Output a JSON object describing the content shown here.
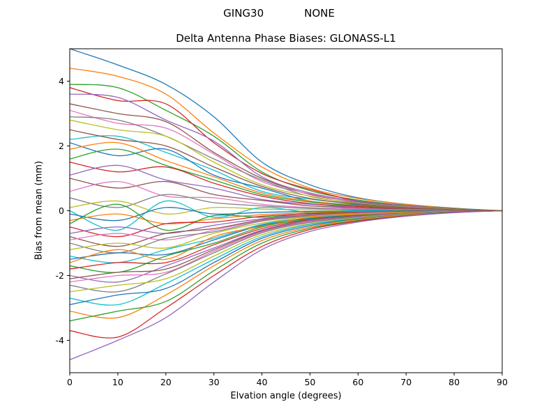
{
  "header": {
    "left": "GING30",
    "right": "NONE"
  },
  "chart_data": {
    "type": "line",
    "title": "Delta Antenna Phase Biases: GLONASS-L1",
    "xlabel": "Elvation angle (degrees)",
    "ylabel": "Bias from mean (mm)",
    "xlim": [
      0,
      90
    ],
    "ylim": [
      -5,
      5
    ],
    "xticks": [
      0,
      10,
      20,
      30,
      40,
      50,
      60,
      70,
      80,
      90
    ],
    "yticks": [
      -4,
      -2,
      0,
      2,
      4
    ],
    "grid": false,
    "legend": "none",
    "x": [
      0,
      10,
      20,
      30,
      40,
      50,
      60,
      70,
      80,
      90
    ],
    "palette": [
      "#1f77b4",
      "#ff7f0e",
      "#2ca02c",
      "#d62728",
      "#9467bd",
      "#8c564b",
      "#e377c2",
      "#7f7f7f",
      "#bcbd22",
      "#17becf"
    ],
    "series": [
      [
        5.0,
        4.5,
        3.9,
        2.9,
        1.5,
        0.8,
        0.4,
        0.2,
        0.08,
        0.0
      ],
      [
        4.4,
        4.15,
        3.6,
        2.4,
        1.35,
        0.7,
        0.38,
        0.2,
        0.07,
        0.0
      ],
      [
        3.9,
        3.8,
        3.1,
        2.3,
        1.2,
        0.62,
        0.33,
        0.17,
        0.06,
        0.0
      ],
      [
        3.8,
        3.4,
        3.3,
        2.1,
        1.15,
        0.66,
        0.3,
        0.15,
        0.05,
        0.0
      ],
      [
        3.6,
        3.5,
        2.8,
        2.15,
        1.05,
        0.55,
        0.3,
        0.16,
        0.05,
        0.0
      ],
      [
        3.3,
        3.0,
        2.75,
        1.8,
        1.0,
        0.5,
        0.28,
        0.14,
        0.05,
        0.0
      ],
      [
        3.1,
        2.7,
        2.55,
        1.75,
        0.9,
        0.52,
        0.26,
        0.13,
        0.04,
        0.0
      ],
      [
        2.9,
        2.8,
        2.3,
        1.6,
        0.95,
        0.44,
        0.25,
        0.12,
        0.04,
        0.0
      ],
      [
        2.8,
        2.5,
        2.3,
        1.5,
        0.8,
        0.45,
        0.22,
        0.11,
        0.04,
        0.0
      ],
      [
        2.2,
        2.3,
        1.8,
        1.25,
        0.6,
        0.36,
        0.2,
        0.1,
        0.03,
        0.0
      ],
      [
        2.1,
        1.7,
        1.9,
        1.1,
        0.7,
        0.3,
        0.18,
        0.09,
        0.03,
        0.0
      ],
      [
        1.9,
        2.1,
        1.55,
        1.05,
        0.55,
        0.3,
        0.16,
        0.08,
        0.03,
        0.0
      ],
      [
        1.6,
        1.9,
        1.4,
        0.95,
        0.5,
        0.27,
        0.15,
        0.07,
        0.02,
        0.0
      ],
      [
        1.5,
        1.2,
        1.35,
        0.85,
        0.45,
        0.22,
        0.13,
        0.06,
        0.02,
        0.0
      ],
      [
        1.1,
        1.4,
        0.95,
        0.7,
        0.35,
        0.2,
        0.1,
        0.05,
        0.02,
        0.0
      ],
      [
        1.0,
        0.7,
        0.9,
        0.5,
        0.32,
        0.15,
        0.09,
        0.04,
        0.01,
        0.0
      ],
      [
        0.6,
        0.9,
        0.45,
        0.4,
        0.2,
        0.1,
        0.06,
        0.03,
        0.01,
        0.0
      ],
      [
        0.4,
        0.1,
        0.5,
        0.25,
        0.15,
        0.07,
        0.04,
        0.02,
        0.01,
        0.0
      ],
      [
        0.1,
        0.3,
        -0.1,
        0.1,
        0.05,
        0.03,
        0.01,
        0.01,
        0.0,
        0.0
      ],
      [
        0.0,
        -0.6,
        0.3,
        -0.2,
        0.1,
        -0.05,
        0.02,
        0.0,
        0.0,
        0.0
      ],
      [
        -0.1,
        -0.3,
        0.1,
        -0.1,
        -0.05,
        -0.02,
        -0.01,
        0.0,
        0.0,
        0.0
      ],
      [
        -0.3,
        -0.1,
        -0.4,
        -0.25,
        -0.12,
        -0.06,
        -0.03,
        -0.02,
        -0.01,
        0.0
      ],
      [
        -0.4,
        0.2,
        -0.6,
        -0.15,
        -0.2,
        -0.08,
        -0.04,
        -0.02,
        -0.01,
        0.0
      ],
      [
        -0.5,
        -0.8,
        -0.4,
        -0.35,
        -0.17,
        -0.09,
        -0.05,
        -0.02,
        -0.01,
        0.0
      ],
      [
        -0.7,
        -0.5,
        -0.7,
        -0.45,
        -0.25,
        -0.12,
        -0.06,
        -0.03,
        -0.01,
        0.0
      ],
      [
        -0.8,
        -1.1,
        -0.7,
        -0.55,
        -0.28,
        -0.14,
        -0.07,
        -0.04,
        -0.01,
        0.0
      ],
      [
        -0.9,
        -0.7,
        -0.9,
        -0.6,
        -0.3,
        -0.15,
        -0.08,
        -0.04,
        -0.01,
        0.0
      ],
      [
        -1.0,
        -1.3,
        -0.85,
        -0.65,
        -0.32,
        -0.16,
        -0.09,
        -0.04,
        -0.02,
        0.0
      ],
      [
        -1.2,
        -1.0,
        -1.15,
        -0.7,
        -0.38,
        -0.18,
        -0.1,
        -0.05,
        -0.02,
        0.0
      ],
      [
        -1.4,
        -1.6,
        -1.2,
        -0.85,
        -0.42,
        -0.22,
        -0.12,
        -0.06,
        -0.02,
        0.0
      ],
      [
        -1.5,
        -1.3,
        -1.35,
        -0.9,
        -0.45,
        -0.24,
        -0.13,
        -0.06,
        -0.02,
        0.0
      ],
      [
        -1.6,
        -1.2,
        -1.5,
        -0.8,
        -0.48,
        -0.2,
        -0.11,
        -0.05,
        -0.02,
        0.0
      ],
      [
        -1.7,
        -1.9,
        -1.4,
        -1.0,
        -0.5,
        -0.26,
        -0.15,
        -0.07,
        -0.03,
        0.0
      ],
      [
        -1.8,
        -1.6,
        -1.6,
        -1.05,
        -0.55,
        -0.28,
        -0.16,
        -0.08,
        -0.03,
        0.0
      ],
      [
        -2.0,
        -2.2,
        -1.7,
        -1.15,
        -0.6,
        -0.3,
        -0.17,
        -0.08,
        -0.03,
        0.0
      ],
      [
        -2.1,
        -1.9,
        -1.8,
        -1.2,
        -0.62,
        -0.33,
        -0.18,
        -0.09,
        -0.03,
        0.0
      ],
      [
        -2.2,
        -2.0,
        -1.9,
        -1.25,
        -0.65,
        -0.34,
        -0.19,
        -0.09,
        -0.03,
        0.0
      ],
      [
        -2.3,
        -2.5,
        -1.95,
        -1.3,
        -0.68,
        -0.36,
        -0.2,
        -0.1,
        -0.03,
        0.0
      ],
      [
        -2.5,
        -2.3,
        -2.1,
        -1.4,
        -0.74,
        -0.4,
        -0.22,
        -0.11,
        -0.04,
        0.0
      ],
      [
        -2.7,
        -2.9,
        -2.25,
        -1.5,
        -0.8,
        -0.42,
        -0.24,
        -0.12,
        -0.04,
        0.0
      ],
      [
        -2.9,
        -2.6,
        -2.4,
        -1.6,
        -0.85,
        -0.46,
        -0.25,
        -0.12,
        -0.04,
        0.0
      ],
      [
        -3.1,
        -3.3,
        -2.6,
        -1.7,
        -0.92,
        -0.5,
        -0.27,
        -0.13,
        -0.05,
        0.0
      ],
      [
        -3.4,
        -3.1,
        -2.8,
        -1.85,
        -1.0,
        -0.54,
        -0.3,
        -0.15,
        -0.05,
        0.0
      ],
      [
        -3.7,
        -3.9,
        -3.0,
        -2.0,
        -1.1,
        -0.58,
        -0.32,
        -0.16,
        -0.05,
        0.0
      ],
      [
        -4.6,
        -4.0,
        -3.3,
        -2.2,
        -1.2,
        -0.64,
        -0.35,
        -0.17,
        -0.06,
        0.0
      ],
      [
        2.5,
        2.2,
        2.0,
        1.35,
        0.75,
        0.38,
        0.21,
        0.1,
        0.03,
        0.0
      ]
    ]
  }
}
